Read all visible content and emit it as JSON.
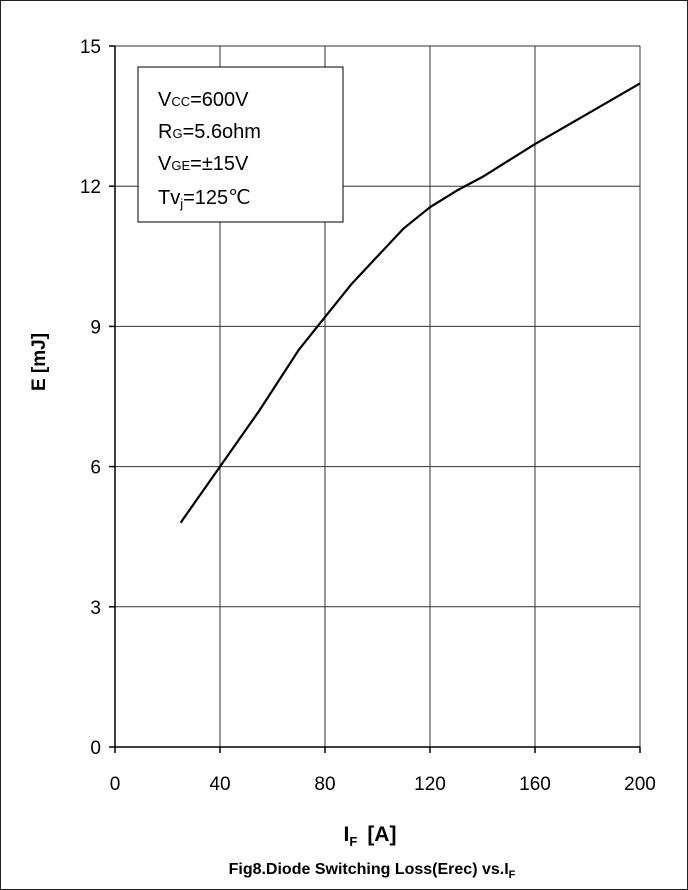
{
  "chart_data": {
    "type": "line",
    "title": "Fig8.Diode Switching Loss(Erec) vs.I",
    "title_sub": "F",
    "xlabel_main": "I",
    "xlabel_sub": "F",
    "xlabel_unit": "[A]",
    "ylabel": "E  [mJ]",
    "xlim": [
      0,
      200
    ],
    "ylim": [
      0,
      15
    ],
    "x_ticks": [
      "0",
      "40",
      "80",
      "120",
      "160",
      "200"
    ],
    "y_ticks": [
      "0",
      "3",
      "6",
      "9",
      "12",
      "15"
    ],
    "grid": true,
    "annotation": {
      "line1": {
        "main": "V",
        "sub": "CC",
        "rest": "=600V"
      },
      "line2": {
        "main": "R",
        "sub": "G",
        "rest": "=5.6ohm"
      },
      "line3": {
        "main": "V",
        "sub": "GE",
        "rest": "=±15V"
      },
      "line4": {
        "main": "Tv",
        "sub": "j",
        "rest": "=125℃"
      }
    },
    "series": [
      {
        "x": [
          25,
          40,
          55,
          70,
          80,
          90,
          100,
          110,
          120,
          130,
          140,
          160,
          180,
          200
        ],
        "y": [
          4.8,
          6.0,
          7.2,
          8.5,
          9.2,
          9.9,
          10.5,
          11.1,
          11.55,
          11.9,
          12.2,
          12.9,
          13.55,
          14.2
        ]
      }
    ],
    "line_color": "#000000",
    "grid_color": "#333333"
  }
}
